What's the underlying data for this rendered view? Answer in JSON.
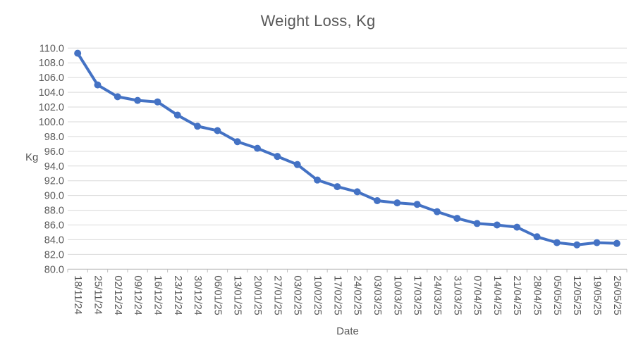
{
  "chart_data": {
    "type": "line",
    "title": "Weight Loss, Kg",
    "xlabel": "Date",
    "ylabel": "Kg",
    "ylim": [
      80.0,
      110.0
    ],
    "ytick_step": 2.0,
    "ytick_decimals": 1,
    "grid": true,
    "legend": "none",
    "marker": "circle",
    "line_color": "#4472C4",
    "grid_color": "#D9D9D9",
    "axis_color": "#BFBFBF",
    "text_color": "#595959",
    "categories": [
      "18/11/24",
      "25/11/24",
      "02/12/24",
      "09/12/24",
      "16/12/24",
      "23/12/24",
      "30/12/24",
      "06/01/25",
      "13/01/25",
      "20/01/25",
      "27/01/25",
      "03/02/25",
      "10/02/25",
      "17/02/25",
      "24/02/25",
      "03/03/25",
      "10/03/25",
      "17/03/25",
      "24/03/25",
      "31/03/25",
      "07/04/25",
      "14/04/25",
      "21/04/25",
      "28/04/25",
      "05/05/25",
      "12/05/25",
      "19/05/25",
      "26/05/25"
    ],
    "values": [
      109.3,
      105.0,
      103.4,
      102.9,
      102.7,
      100.9,
      99.4,
      98.8,
      97.3,
      96.4,
      95.3,
      94.2,
      92.1,
      91.2,
      90.5,
      89.3,
      89.0,
      88.8,
      87.8,
      86.9,
      86.2,
      86.0,
      85.7,
      84.4,
      83.6,
      83.3,
      83.6,
      83.5
    ]
  }
}
